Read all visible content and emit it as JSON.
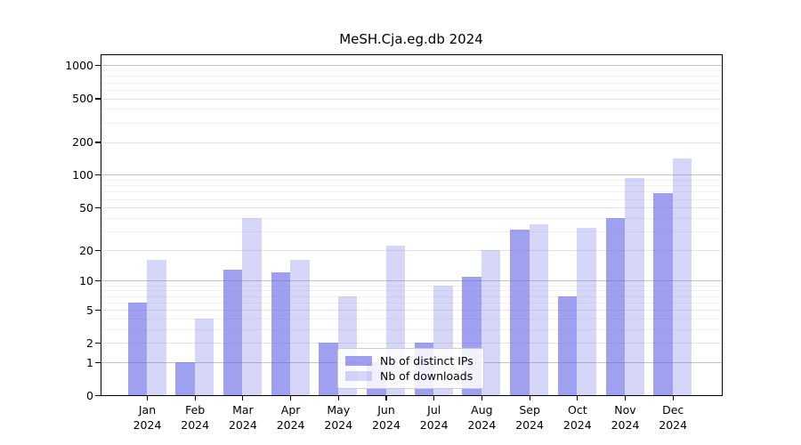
{
  "figure": {
    "background": "#ffffff"
  },
  "chart_data": {
    "type": "bar",
    "title": "MeSH.Cja.eg.db 2024",
    "xlabel": "",
    "ylabel": "",
    "yscale": "log1p",
    "grid": true,
    "legend_position": "lower-center-inside",
    "yticks": [
      0,
      1,
      2,
      5,
      10,
      20,
      50,
      100,
      200,
      500,
      1000
    ],
    "ylim": [
      0,
      1270
    ],
    "categories": [
      "Jan 2024",
      "Feb 2024",
      "Mar 2024",
      "Apr 2024",
      "May 2024",
      "Jun 2024",
      "Jul 2024",
      "Aug 2024",
      "Sep 2024",
      "Oct 2024",
      "Nov 2024",
      "Dec 2024"
    ],
    "series": [
      {
        "name": "Nb of distinct IPs",
        "color": "#a5a5f1",
        "values": [
          6,
          1,
          13,
          12,
          2,
          1,
          2,
          11,
          31,
          7,
          40,
          68
        ]
      },
      {
        "name": "Nb of downloads",
        "color": "#dcdcf9",
        "values": [
          16,
          4,
          40,
          16,
          7,
          22,
          9,
          20,
          35,
          32,
          94,
          142
        ]
      }
    ]
  }
}
